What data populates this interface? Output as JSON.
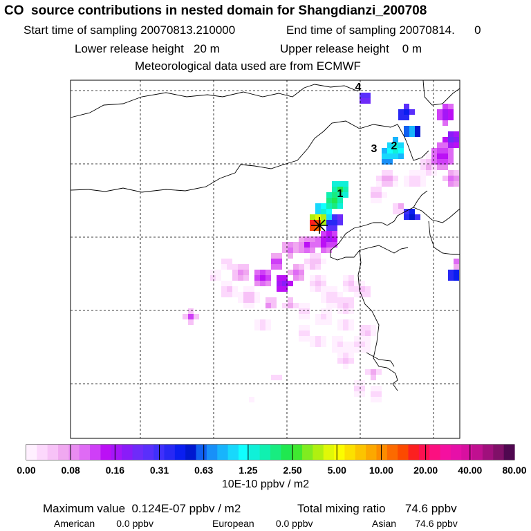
{
  "header": {
    "title": "CO  source contributions in nested domain for Shangdianzi_200708",
    "start_label": "Start time of sampling 20070813.210000",
    "end_label": "End time of sampling 20070814.      0",
    "lower_release": "Lower release height   20 m",
    "upper_release": "Upper release height    0 m",
    "met_data": "Meteorological data used are from ECMWF"
  },
  "chart_data": {
    "type": "heatmap",
    "title": "CO  source contributions in nested domain for Shangdianzi_200708",
    "colorbar": {
      "unit_label": "10E-10 ppbv / m2",
      "tick_labels": [
        "0.00",
        "0.08",
        "0.16",
        "0.31",
        "0.63",
        "1.25",
        "2.50",
        "5.00",
        "10.00",
        "20.00",
        "40.00",
        "80.00"
      ],
      "colors": [
        "#fff0ff",
        "#fcd8fc",
        "#f7c2f7",
        "#f0a8f0",
        "#e98cf1",
        "#df6bf5",
        "#cf3ff7",
        "#bb10f5",
        "#a516f7",
        "#8a1cf8",
        "#6f2bf9",
        "#5a2ffb",
        "#4030fb",
        "#2828f4",
        "#0a1ef0",
        "#0018d0",
        "#1060f0",
        "#1890f8",
        "#18b4fc",
        "#18d8fc",
        "#10ffff",
        "#10f0d8",
        "#10f0b0",
        "#18ec80",
        "#20e850",
        "#40e830",
        "#80ec20",
        "#b0f010",
        "#e0f808",
        "#fcfc00",
        "#fce000",
        "#fcc400",
        "#fca800",
        "#fc8c00",
        "#fc6a00",
        "#fc4a00",
        "#fc2020",
        "#fc1050",
        "#fc1080",
        "#f410a0",
        "#e610a8",
        "#d810a0",
        "#c01090",
        "#a0107c",
        "#801068",
        "#500850"
      ]
    },
    "annotations": [
      "1",
      "2",
      "3",
      "4"
    ],
    "stats": {
      "max_value": "Maximum value  0.124E-07 ppbv / m2",
      "total_mixing": "Total mixing ratio      74.6 ppbv",
      "american": "American        0.0 ppbv",
      "european": "European        0.0 ppbv",
      "asian": "Asian       74.6 ppbv"
    }
  }
}
